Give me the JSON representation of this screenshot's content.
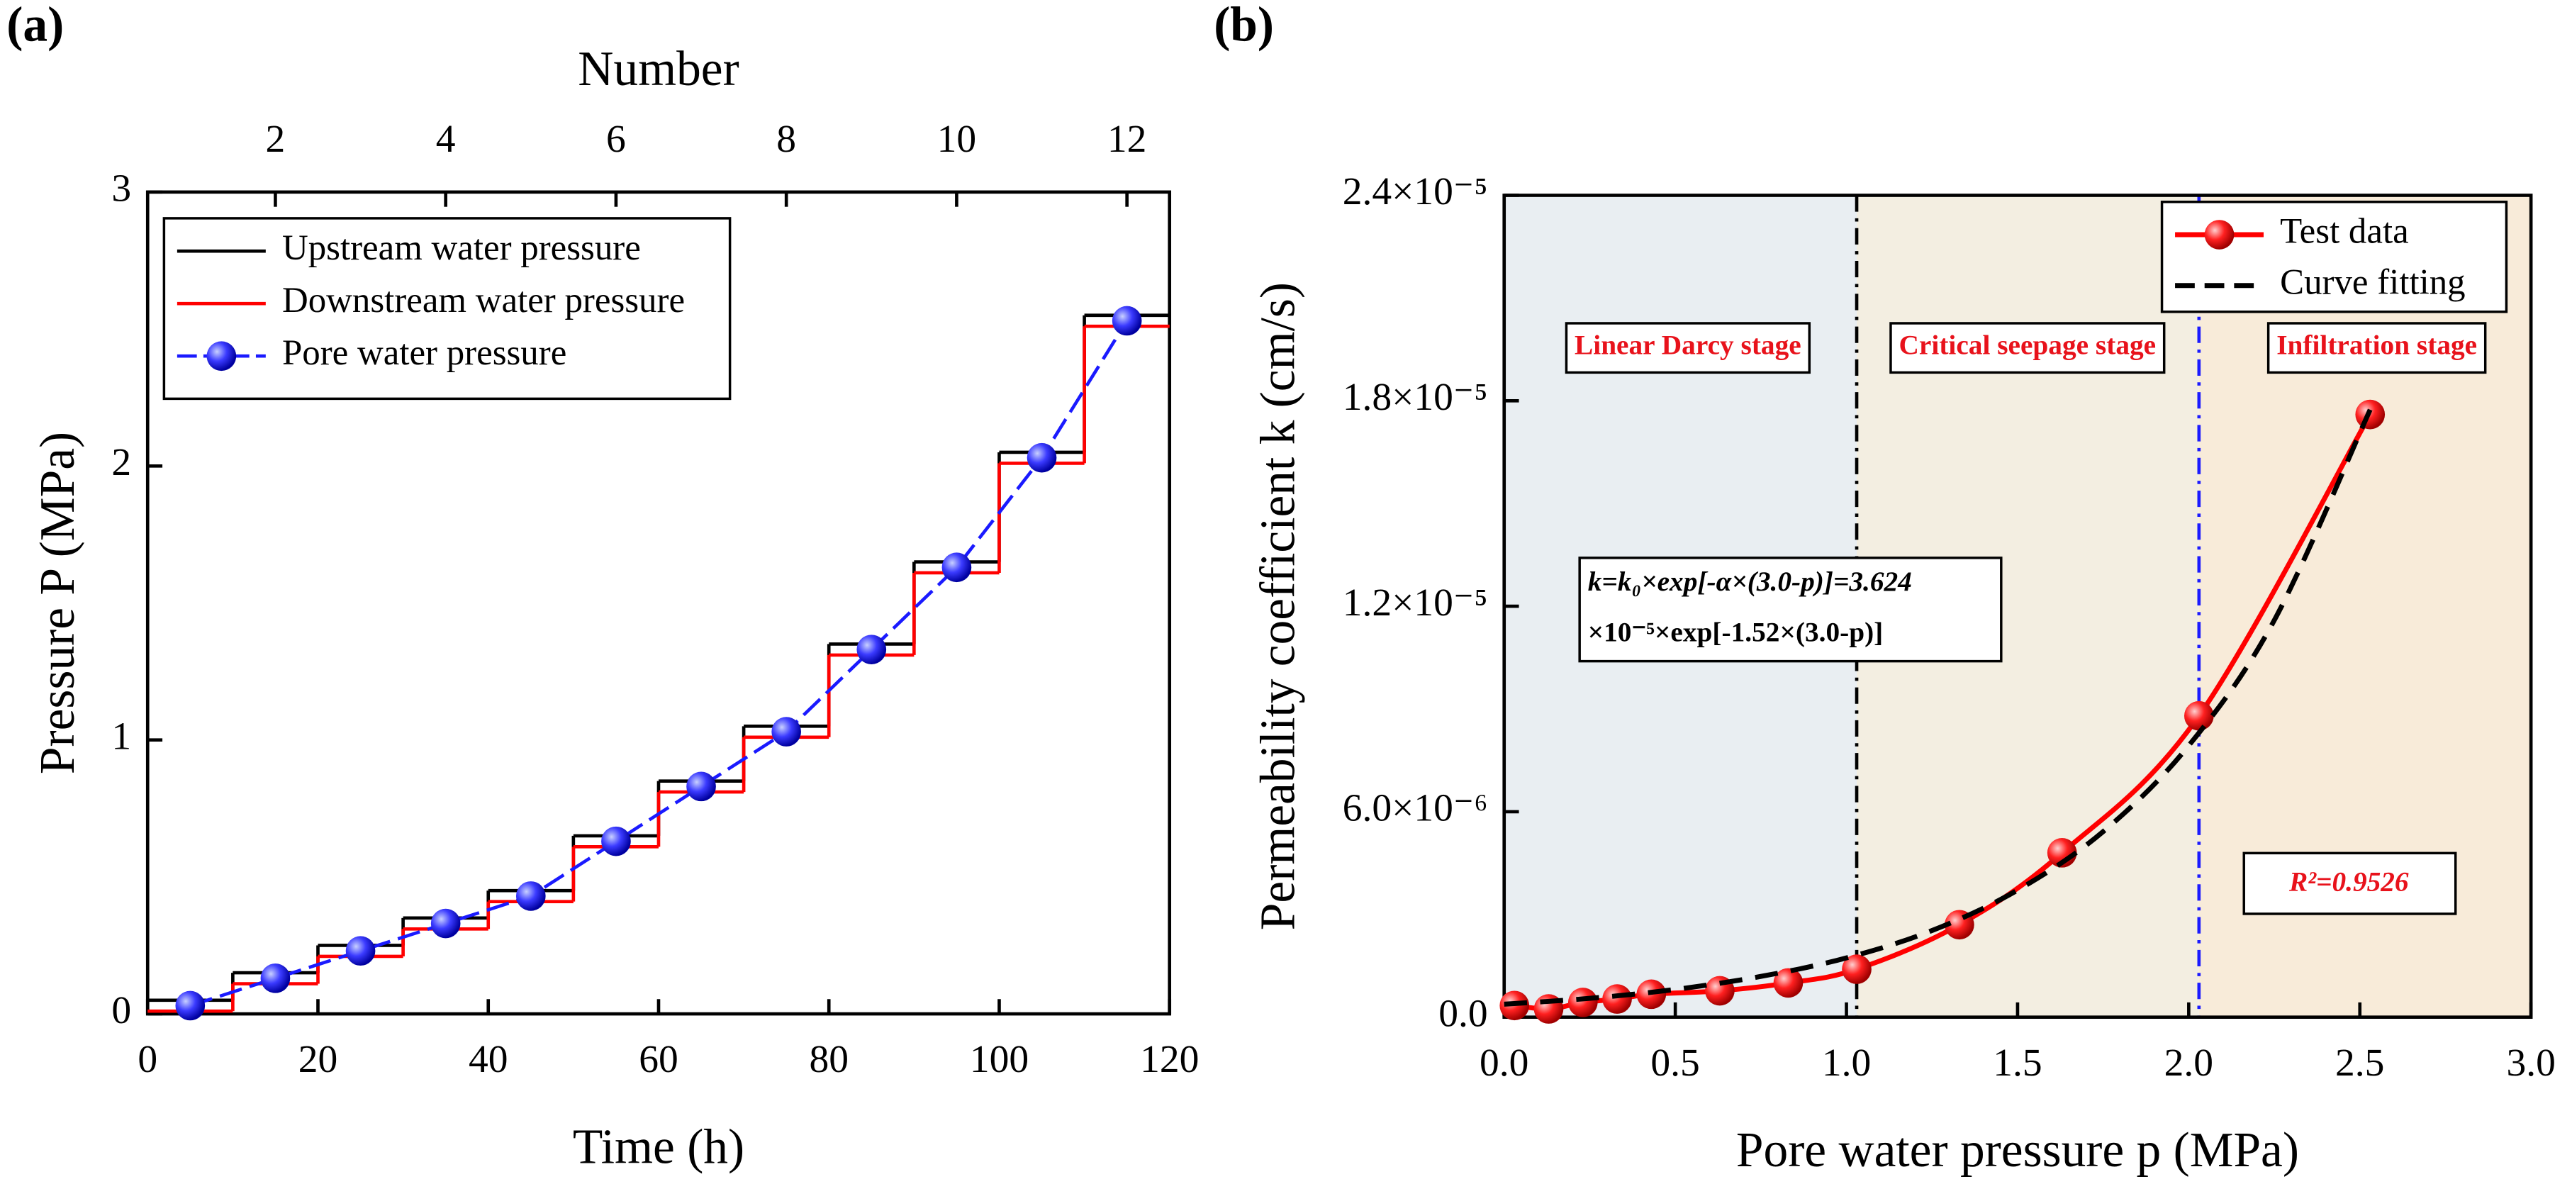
{
  "chart_data": [
    {
      "type": "line",
      "title": "(a)",
      "xlabel": "Time (h)",
      "ylabel": "Pressure P (MPa)",
      "x2label": "Number",
      "xlim": [
        0,
        120
      ],
      "xticks": [
        0,
        20,
        40,
        60,
        80,
        100,
        120
      ],
      "ylim": [
        0,
        3
      ],
      "yticks": [
        0,
        1,
        2,
        3
      ],
      "x2lim": [
        0.5,
        12.5
      ],
      "x2ticks": [
        2,
        4,
        6,
        8,
        10,
        12
      ],
      "bins": [
        0,
        10,
        20,
        30,
        40,
        50,
        60,
        70,
        80,
        90,
        100,
        110,
        120
      ],
      "x": [
        5,
        15,
        25,
        35,
        45,
        55,
        65,
        75,
        85,
        95,
        105,
        115
      ],
      "series": [
        {
          "name": "Upstream water pressure",
          "color": "#000000",
          "style": "step",
          "values": [
            0.05,
            0.15,
            0.25,
            0.35,
            0.45,
            0.65,
            0.85,
            1.05,
            1.35,
            1.65,
            2.05,
            2.55
          ]
        },
        {
          "name": "Downstream water pressure",
          "color": "#ff0000",
          "style": "step",
          "values": [
            0.01,
            0.11,
            0.21,
            0.31,
            0.41,
            0.61,
            0.81,
            1.01,
            1.31,
            1.61,
            2.01,
            2.51
          ]
        },
        {
          "name": "Pore water pressure",
          "color": "#1a1aff",
          "style": "marker-line",
          "values": [
            0.03,
            0.13,
            0.23,
            0.33,
            0.43,
            0.63,
            0.83,
            1.03,
            1.33,
            1.63,
            2.03,
            2.53
          ]
        }
      ]
    },
    {
      "type": "line",
      "title": "(b)",
      "xlabel": "Pore water pressure p (MPa)",
      "ylabel": "Permeability coefficient k (cm/s)",
      "xlim": [
        0,
        3
      ],
      "xticks": [
        {
          "value": 0,
          "label": "0.0"
        },
        {
          "value": 0.5,
          "label": "0.5"
        },
        {
          "value": 1,
          "label": "1.0"
        },
        {
          "value": 1.5,
          "label": "1.5"
        },
        {
          "value": 2,
          "label": "2.0"
        },
        {
          "value": 2.5,
          "label": "2.5"
        },
        {
          "value": 3,
          "label": "3.0"
        }
      ],
      "ylim": [
        0,
        2.4e-05
      ],
      "yticks": [
        {
          "value": 0,
          "label": "0.0"
        },
        {
          "value": 6e-06,
          "label": "6.0×10⁻⁶"
        },
        {
          "value": 1.2e-05,
          "label": "1.2×10⁻⁵"
        },
        {
          "value": 1.8e-05,
          "label": "1.8×10⁻⁵"
        },
        {
          "value": 2.4e-05,
          "label": "2.4×10⁻⁵"
        }
      ],
      "stage_boundaries": [
        1.03,
        2.03
      ],
      "boundary_colors": [
        "#000000",
        "#1a1aff"
      ],
      "stage_colors": [
        "#e9eef2",
        "#f3eee1",
        "#f8ebd9"
      ],
      "stages": [
        "Linear Darcy stage",
        "Critical seepage stage",
        "Infiltration stage"
      ],
      "equation": [
        "k=k₀×exp[-α×(3.0-p)]=3.624",
        "×10⁻⁵×exp[-1.52×(3.0-p)]"
      ],
      "r2_label": "R²=0.9526",
      "legend": "upper right",
      "series": [
        {
          "name": "Test data",
          "color": "#ff0000",
          "style": "marker-line",
          "x": [
            0.03,
            0.13,
            0.23,
            0.33,
            0.43,
            0.63,
            0.83,
            1.03,
            1.33,
            1.63,
            2.03,
            2.53
          ],
          "values": [
            3.4e-07,
            2.4e-07,
            4.3e-07,
            5.3e-07,
            6.7e-07,
            7.7e-07,
            1e-06,
            1.4e-06,
            2.7e-06,
            4.8e-06,
            8.8e-06,
            1.76e-05
          ]
        },
        {
          "name": "Curve fitting",
          "color": "#000000",
          "style": "dashed",
          "x": [
            0,
            0.25,
            0.5,
            0.75,
            1,
            1.25,
            1.5,
            1.75,
            2,
            2.25,
            2.53
          ],
          "values": [
            3.79e-07,
            5.5e-07,
            8.1e-07,
            1.19e-06,
            1.73e-06,
            2.53e-06,
            3.71e-06,
            5.42e-06,
            7.93e-06,
            1.159e-05,
            1.774e-05
          ]
        }
      ]
    }
  ]
}
